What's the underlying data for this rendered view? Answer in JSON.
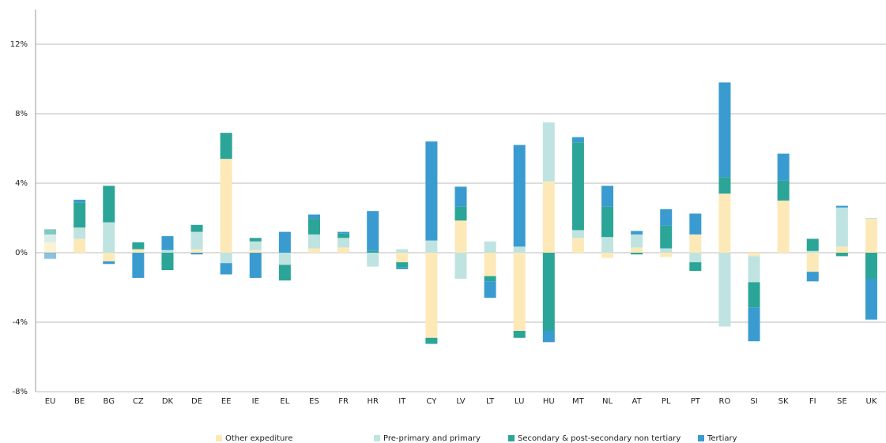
{
  "chart_data": {
    "type": "stacked_bar",
    "categories": [
      "EU",
      "BE",
      "BG",
      "CZ",
      "DK",
      "DE",
      "EE",
      "IE",
      "EL",
      "ES",
      "FR",
      "HR",
      "IT",
      "CY",
      "LV",
      "LT",
      "LU",
      "HU",
      "MT",
      "NL",
      "AT",
      "PL",
      "PT",
      "RO",
      "SI",
      "SK",
      "FI",
      "SE",
      "UK"
    ],
    "series": [
      {
        "name": "Other expediture",
        "color": "#fde9b8",
        "values": [
          0.6,
          0.8,
          -0.5,
          0.2,
          0,
          0.2,
          5.4,
          0.15,
          0,
          0.25,
          0.3,
          0,
          -0.55,
          -4.9,
          1.85,
          -1.35,
          -4.5,
          4.1,
          0.85,
          -0.3,
          0.3,
          -0.25,
          1.05,
          3.4,
          -0.2,
          3.0,
          -1.1,
          0.35,
          1.95
        ]
      },
      {
        "name": "Pre-primary and primary",
        "color": "#bfe3e0",
        "values": [
          0.45,
          0.65,
          1.75,
          0,
          0.15,
          1.0,
          -0.6,
          0.5,
          -0.7,
          0.8,
          0.55,
          -0.8,
          0.2,
          0.7,
          -1.5,
          0.65,
          0.35,
          3.4,
          0.45,
          0.9,
          0.75,
          0.25,
          -0.55,
          -4.25,
          -1.5,
          0,
          0.1,
          2.25,
          0.05
        ]
      },
      {
        "name": "Secondary & post-secondary non tertiary",
        "color": "#2ba597",
        "values": [
          0.3,
          1.45,
          2.1,
          0.4,
          -1.0,
          0.4,
          1.5,
          0.2,
          -0.9,
          0.9,
          0.25,
          0.1,
          -0.3,
          -0.35,
          0.8,
          -0.3,
          -0.4,
          -4.5,
          5.05,
          1.75,
          -0.1,
          1.3,
          -0.5,
          0.95,
          -1.45,
          1.15,
          0.7,
          -0.2,
          -1.5
        ]
      },
      {
        "name": "Tertiary",
        "color": "#3a9bd0",
        "values": [
          -0.35,
          0.15,
          -0.15,
          -1.45,
          0.8,
          -0.1,
          -0.65,
          -1.45,
          1.2,
          0.25,
          0.1,
          2.3,
          -0.1,
          5.7,
          1.15,
          -0.95,
          5.85,
          -0.65,
          0.3,
          1.2,
          0.2,
          0.95,
          1.2,
          5.45,
          -1.95,
          1.55,
          -0.55,
          0.1,
          -2.35
        ]
      }
    ],
    "ylim": [
      -8,
      14
    ],
    "yticks": [
      {
        "value": -8,
        "label": "-8%"
      },
      {
        "value": -4,
        "label": "-4%"
      },
      {
        "value": 0,
        "label": "0%"
      },
      {
        "value": 4,
        "label": "4%"
      },
      {
        "value": 8,
        "label": "8%"
      },
      {
        "value": 12,
        "label": "12%"
      }
    ],
    "grid": true,
    "legend": "bottom"
  }
}
